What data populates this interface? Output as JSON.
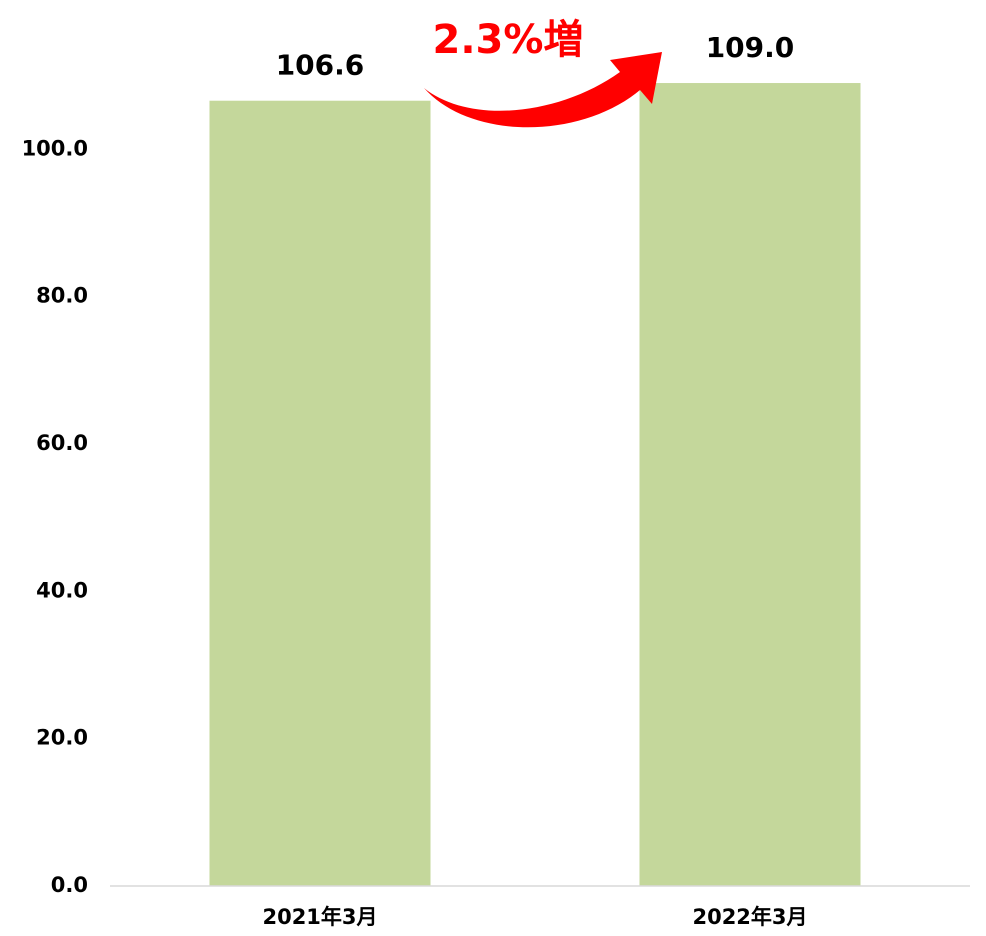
{
  "chart_data": {
    "type": "bar",
    "categories": [
      "2021年3月",
      "2022年3月"
    ],
    "values": [
      106.6,
      109.0
    ],
    "value_labels": [
      "106.6",
      "109.0"
    ],
    "color": "#c4d79b",
    "ylim": [
      0,
      120
    ],
    "yticks": [
      {
        "value": 0,
        "label": "0.0"
      },
      {
        "value": 20,
        "label": "20.0"
      },
      {
        "value": 40,
        "label": "40.0"
      },
      {
        "value": 60,
        "label": "60.0"
      },
      {
        "value": 80,
        "label": "80.0"
      },
      {
        "value": 100,
        "label": "100.0"
      }
    ],
    "annotation": "2.3%増",
    "grid": false
  }
}
